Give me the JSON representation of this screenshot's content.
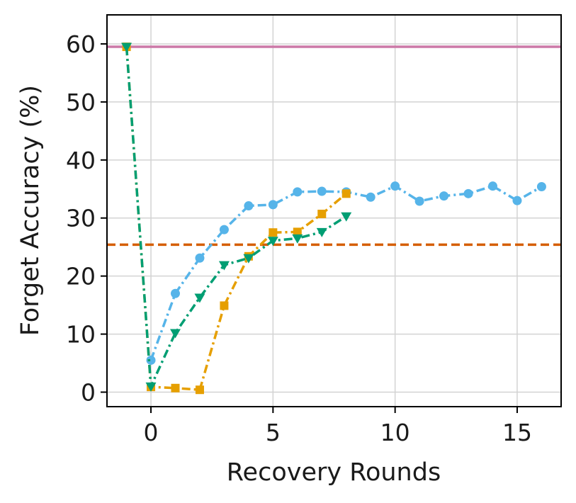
{
  "chart_data": {
    "type": "line",
    "title": "",
    "xlabel": "Recovery Rounds",
    "ylabel": "Forget Accuracy (%)",
    "xlim": [
      -1.8,
      16.8
    ],
    "ylim": [
      -2.5,
      65
    ],
    "xticks": [
      0,
      5,
      10,
      15
    ],
    "yticks": [
      0,
      10,
      20,
      30,
      40,
      50,
      60
    ],
    "grid": true,
    "legend": "none",
    "hlines": [
      {
        "y": 59.5,
        "color": "#CC79A7",
        "style": "solid"
      },
      {
        "y": 25.4,
        "color": "#D55E00",
        "style": "dashed"
      }
    ],
    "series": [
      {
        "color": "#56B4E9",
        "marker": "circle",
        "linestyle": "dashdot",
        "x": [
          0,
          1,
          2,
          3,
          4,
          5,
          6,
          7,
          8,
          9,
          10,
          11,
          12,
          13,
          14,
          15,
          16
        ],
        "y": [
          5.5,
          17,
          23.1,
          28,
          32.1,
          32.3,
          34.5,
          34.6,
          34.5,
          33.6,
          35.5,
          32.9,
          33.8,
          34.2,
          35.5,
          33,
          35.4
        ]
      },
      {
        "color": "#E69F00",
        "marker": "square",
        "linestyle": "dashdot",
        "x": [
          -1,
          0,
          1,
          2,
          3,
          4,
          5,
          6,
          7,
          8
        ],
        "y": [
          59.5,
          0.9,
          0.7,
          0.4,
          14.9,
          23.4,
          27.5,
          27.6,
          30.7,
          34.2
        ]
      },
      {
        "color": "#009E73",
        "marker": "triangle-down",
        "linestyle": "dashdot",
        "x": [
          -1,
          0,
          1,
          2,
          3,
          4,
          5,
          6,
          7,
          8
        ],
        "y": [
          59.5,
          1,
          10.2,
          16.3,
          21.9,
          23.1,
          26.1,
          26.5,
          27.6,
          30.3
        ]
      }
    ]
  }
}
